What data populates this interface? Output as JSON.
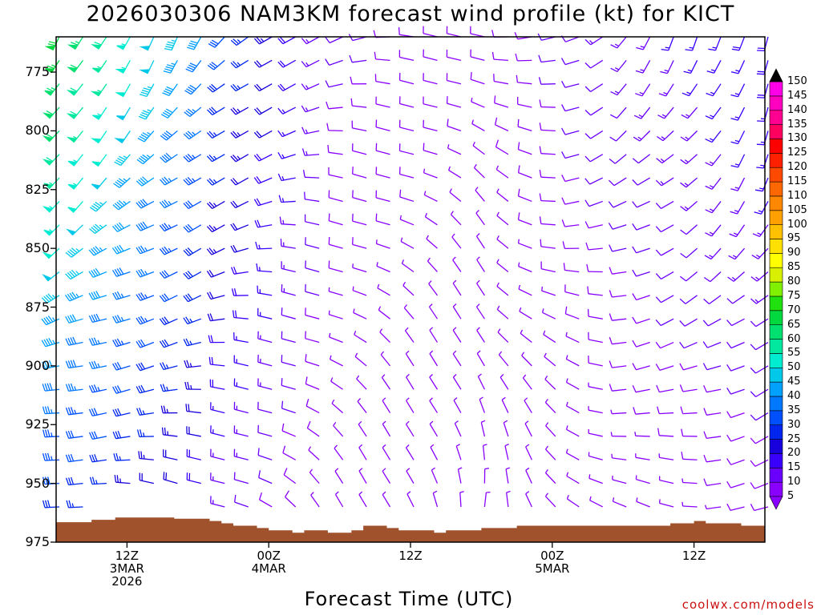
{
  "header": {
    "title": "2026030306 NAM3KM forecast wind profile (kt) for KICT"
  },
  "footer": {
    "credit": "coolwx.com/models"
  },
  "chart_data": {
    "type": "wind-barb-time-height",
    "title": "2026030306 NAM3KM forecast wind profile (kt) for KICT",
    "xlabel": "Forecast Time (UTC)",
    "ylabel": "",
    "units": "kt",
    "x_range_hours": [
      0,
      60
    ],
    "y_range_hPa": [
      760,
      975
    ],
    "y_ticks": [
      {
        "value": 775,
        "label": "775"
      },
      {
        "value": 800,
        "label": "800"
      },
      {
        "value": 825,
        "label": "825"
      },
      {
        "value": 850,
        "label": "850"
      },
      {
        "value": 875,
        "label": "875"
      },
      {
        "value": 900,
        "label": "900"
      },
      {
        "value": 925,
        "label": "925"
      },
      {
        "value": 950,
        "label": "950"
      },
      {
        "value": 975,
        "label": "975"
      }
    ],
    "x_ticks": [
      {
        "hour": 6,
        "lines": [
          "12Z",
          "3MAR",
          "2026"
        ]
      },
      {
        "hour": 18,
        "lines": [
          "00Z",
          "4MAR"
        ]
      },
      {
        "hour": 30,
        "lines": [
          "12Z"
        ]
      },
      {
        "hour": 42,
        "lines": [
          "00Z",
          "5MAR"
        ]
      },
      {
        "hour": 54,
        "lines": [
          "12Z"
        ]
      }
    ],
    "colorbar": {
      "levels": [
        5,
        10,
        15,
        20,
        25,
        30,
        35,
        40,
        45,
        50,
        55,
        60,
        65,
        70,
        75,
        80,
        85,
        90,
        95,
        100,
        105,
        110,
        115,
        120,
        125,
        130,
        135,
        140,
        145,
        150
      ],
      "colors": [
        "#8a00ff",
        "#6a00ff",
        "#3a00ff",
        "#1800dd",
        "#0026ee",
        "#0050ff",
        "#0078ff",
        "#00a0ff",
        "#00c8e8",
        "#00ecd0",
        "#00e8a0",
        "#00e070",
        "#00d840",
        "#20e010",
        "#80f000",
        "#d8f000",
        "#ffff00",
        "#ffe000",
        "#ffc000",
        "#ffa000",
        "#ff8800",
        "#ff6800",
        "#ff4800",
        "#ff2000",
        "#ff0000",
        "#ff0060",
        "#ff0090",
        "#ff00c0",
        "#ff00e8",
        "#ff00ff"
      ]
    },
    "ground_pressure_hPa": [
      966.5,
      966.5,
      966.5,
      965.5,
      965.5,
      964.5,
      964.5,
      964.5,
      964.5,
      964.5,
      965,
      965,
      965,
      966,
      967,
      968,
      968,
      969,
      970,
      970,
      971,
      970,
      970,
      971,
      971,
      970,
      968,
      968,
      969,
      970,
      970,
      970,
      971,
      970,
      970,
      970,
      969,
      969,
      969,
      968,
      968,
      968,
      968,
      968,
      968,
      968,
      968,
      968,
      968,
      968,
      968,
      968,
      967,
      967,
      966,
      967,
      967,
      967,
      968,
      968,
      968
    ],
    "barb_grid": {
      "levels_hPa": [
        760,
        770,
        780,
        790,
        800,
        810,
        820,
        830,
        840,
        850,
        860,
        870,
        880,
        890,
        900,
        910,
        920,
        930,
        940,
        950,
        960
      ],
      "hours": [
        0,
        2,
        4,
        6,
        8,
        10,
        12,
        14,
        16,
        18,
        20,
        22,
        24,
        26,
        28,
        30,
        32,
        34,
        36,
        38,
        40,
        42,
        44,
        46,
        48,
        50,
        52,
        54,
        56,
        58,
        60
      ],
      "wind_direction_speed_kt_at_850": [
        {
          "hour": 0,
          "dir": 235,
          "spd": 44
        },
        {
          "hour": 12,
          "dir": 245,
          "spd": 26
        },
        {
          "hour": 24,
          "dir": 285,
          "spd": 8
        },
        {
          "hour": 36,
          "dir": 320,
          "spd": 6
        },
        {
          "hour": 48,
          "dir": 250,
          "spd": 10
        },
        {
          "hour": 60,
          "dir": 220,
          "spd": 14
        }
      ]
    }
  }
}
